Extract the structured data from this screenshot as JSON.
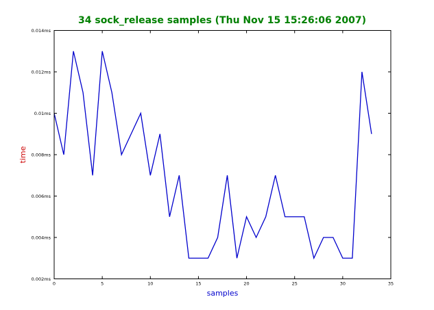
{
  "colors": {
    "title": "#008000",
    "xlabel": "#0000cc",
    "ylabel": "#cc0000",
    "line": "#0000cc",
    "axes": "#000000"
  },
  "chart_data": {
    "type": "line",
    "title": "34 sock_release samples (Thu Nov 15 15:26:06 2007)",
    "xlabel": "samples",
    "ylabel": "time",
    "xlim": [
      0,
      35
    ],
    "ylim": [
      0.002,
      0.014
    ],
    "grid": false,
    "x_ticks": [
      0,
      5,
      10,
      15,
      20,
      25,
      30,
      35
    ],
    "x_tick_labels": [
      "0",
      "5",
      "10",
      "15",
      "20",
      "25",
      "30",
      "35"
    ],
    "y_ticks": [
      0.002,
      0.004,
      0.006,
      0.008,
      0.01,
      0.012,
      0.014
    ],
    "y_tick_labels": [
      "0.002ms",
      "0.004ms",
      "0.006ms",
      "0.008ms",
      "0.01ms",
      "0.012ms",
      "0.014ms"
    ],
    "series": [
      {
        "x": [
          0,
          1,
          2,
          3,
          4,
          5,
          6,
          7,
          8,
          9,
          10,
          11,
          12,
          13,
          14,
          15,
          16,
          17,
          18,
          19,
          20,
          21,
          22,
          23,
          24,
          25,
          26,
          27,
          28,
          29,
          30,
          31,
          32,
          33
        ],
        "values": [
          0.01,
          0.008,
          0.013,
          0.011,
          0.007,
          0.013,
          0.011,
          0.008,
          0.009,
          0.01,
          0.007,
          0.009,
          0.005,
          0.007,
          0.003,
          0.003,
          0.003,
          0.004,
          0.007,
          0.003,
          0.005,
          0.004,
          0.005,
          0.007,
          0.005,
          0.005,
          0.005,
          0.003,
          0.004,
          0.004,
          0.003,
          0.003,
          0.012,
          0.009
        ]
      }
    ]
  }
}
